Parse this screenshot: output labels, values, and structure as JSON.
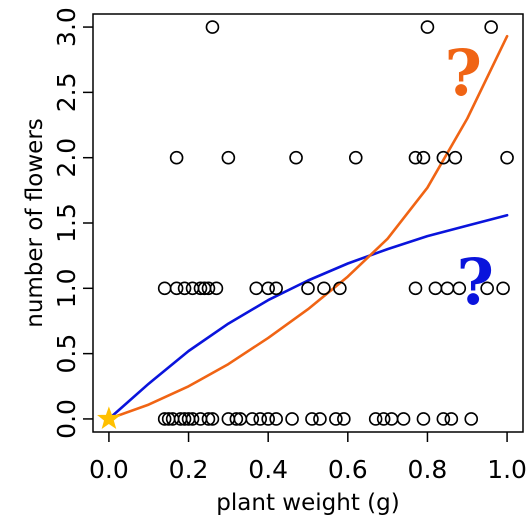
{
  "chart_data": {
    "type": "scatter",
    "title": "",
    "xlabel": "plant weight (g)",
    "ylabel": "number of flowers",
    "xlim": [
      -0.04,
      1.04
    ],
    "ylim": [
      -0.1,
      3.1
    ],
    "x_ticks": [
      0.0,
      0.2,
      0.4,
      0.6,
      0.8,
      1.0
    ],
    "x_tick_labels": [
      "0.0",
      "0.2",
      "0.4",
      "0.6",
      "0.8",
      "1.0"
    ],
    "y_ticks": [
      0.0,
      0.5,
      1.0,
      1.5,
      2.0,
      2.5,
      3.0
    ],
    "y_tick_labels": [
      "0.0",
      "0.5",
      "1.0",
      "1.5",
      "2.0",
      "2.5",
      "3.0"
    ],
    "grid": false,
    "points": [
      {
        "x": 0.14,
        "y": 0
      },
      {
        "x": 0.15,
        "y": 0
      },
      {
        "x": 0.16,
        "y": 0
      },
      {
        "x": 0.18,
        "y": 0
      },
      {
        "x": 0.19,
        "y": 0
      },
      {
        "x": 0.2,
        "y": 0
      },
      {
        "x": 0.21,
        "y": 0
      },
      {
        "x": 0.23,
        "y": 0
      },
      {
        "x": 0.25,
        "y": 0
      },
      {
        "x": 0.26,
        "y": 0
      },
      {
        "x": 0.3,
        "y": 0
      },
      {
        "x": 0.32,
        "y": 0
      },
      {
        "x": 0.33,
        "y": 0
      },
      {
        "x": 0.36,
        "y": 0
      },
      {
        "x": 0.38,
        "y": 0
      },
      {
        "x": 0.4,
        "y": 0
      },
      {
        "x": 0.42,
        "y": 0
      },
      {
        "x": 0.46,
        "y": 0
      },
      {
        "x": 0.51,
        "y": 0
      },
      {
        "x": 0.53,
        "y": 0
      },
      {
        "x": 0.57,
        "y": 0
      },
      {
        "x": 0.59,
        "y": 0
      },
      {
        "x": 0.67,
        "y": 0
      },
      {
        "x": 0.69,
        "y": 0
      },
      {
        "x": 0.71,
        "y": 0
      },
      {
        "x": 0.74,
        "y": 0
      },
      {
        "x": 0.79,
        "y": 0
      },
      {
        "x": 0.84,
        "y": 0
      },
      {
        "x": 0.86,
        "y": 0
      },
      {
        "x": 0.91,
        "y": 0
      },
      {
        "x": 0.14,
        "y": 1
      },
      {
        "x": 0.17,
        "y": 1
      },
      {
        "x": 0.19,
        "y": 1
      },
      {
        "x": 0.21,
        "y": 1
      },
      {
        "x": 0.23,
        "y": 1
      },
      {
        "x": 0.24,
        "y": 1
      },
      {
        "x": 0.25,
        "y": 1
      },
      {
        "x": 0.27,
        "y": 1
      },
      {
        "x": 0.37,
        "y": 1
      },
      {
        "x": 0.4,
        "y": 1
      },
      {
        "x": 0.42,
        "y": 1
      },
      {
        "x": 0.5,
        "y": 1
      },
      {
        "x": 0.54,
        "y": 1
      },
      {
        "x": 0.58,
        "y": 1
      },
      {
        "x": 0.77,
        "y": 1
      },
      {
        "x": 0.82,
        "y": 1
      },
      {
        "x": 0.85,
        "y": 1
      },
      {
        "x": 0.88,
        "y": 1
      },
      {
        "x": 0.95,
        "y": 1
      },
      {
        "x": 0.99,
        "y": 1
      },
      {
        "x": 0.17,
        "y": 2
      },
      {
        "x": 0.3,
        "y": 2
      },
      {
        "x": 0.47,
        "y": 2
      },
      {
        "x": 0.62,
        "y": 2
      },
      {
        "x": 0.77,
        "y": 2
      },
      {
        "x": 0.79,
        "y": 2
      },
      {
        "x": 0.84,
        "y": 2
      },
      {
        "x": 0.87,
        "y": 2
      },
      {
        "x": 1.0,
        "y": 2
      },
      {
        "x": 0.26,
        "y": 3
      },
      {
        "x": 0.8,
        "y": 3
      },
      {
        "x": 0.96,
        "y": 3
      }
    ],
    "curves": [
      {
        "color": "#0a14dc",
        "form": "concave",
        "x_range": [
          0.0,
          1.0
        ],
        "samples": [
          [
            0.0,
            0.0
          ],
          [
            0.1,
            0.27
          ],
          [
            0.2,
            0.52
          ],
          [
            0.3,
            0.73
          ],
          [
            0.4,
            0.91
          ],
          [
            0.5,
            1.06
          ],
          [
            0.6,
            1.19
          ],
          [
            0.7,
            1.3
          ],
          [
            0.8,
            1.4
          ],
          [
            0.9,
            1.48
          ],
          [
            1.0,
            1.56
          ]
        ]
      },
      {
        "color": "#f06414",
        "form": "convex",
        "x_range": [
          0.0,
          1.0
        ],
        "samples": [
          [
            0.0,
            0.0
          ],
          [
            0.1,
            0.11
          ],
          [
            0.2,
            0.25
          ],
          [
            0.3,
            0.42
          ],
          [
            0.4,
            0.62
          ],
          [
            0.5,
            0.84
          ],
          [
            0.6,
            1.09
          ],
          [
            0.7,
            1.38
          ],
          [
            0.8,
            1.77
          ],
          [
            0.9,
            2.3
          ],
          [
            1.0,
            2.93
          ]
        ]
      }
    ],
    "origin_marker": {
      "x": 0.0,
      "y": 0.0,
      "shape": "star",
      "color": "#ffc000"
    },
    "annotations": [
      {
        "text": "?",
        "color": "#f06414",
        "x": 0.89,
        "y": 2.65
      },
      {
        "text": "?",
        "color": "#0a14dc",
        "x": 0.92,
        "y": 1.05
      }
    ]
  }
}
